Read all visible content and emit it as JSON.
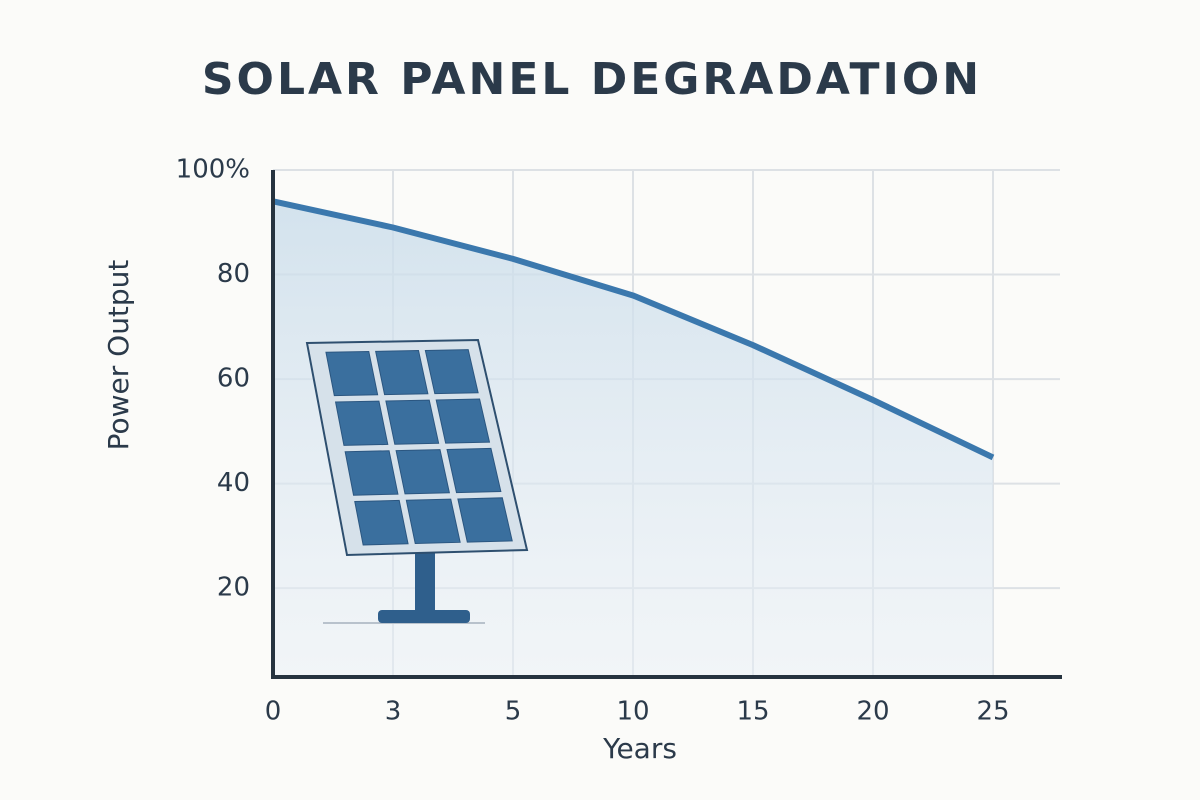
{
  "chart_data": {
    "type": "line",
    "title": "SOLAR PANEL DEGRADATION",
    "y_label": "Power Output",
    "x_label": "Years",
    "categories": [
      "0",
      "3",
      "5",
      "10",
      "15",
      "20",
      "25"
    ],
    "values": [
      94,
      89,
      83,
      76,
      66.5,
      56,
      45
    ],
    "color": "#3b78ad",
    "ylim": [
      3,
      100
    ],
    "yticks": [
      {
        "value": 100,
        "label": "100%"
      },
      80,
      60,
      40,
      20
    ],
    "grid": true
  }
}
